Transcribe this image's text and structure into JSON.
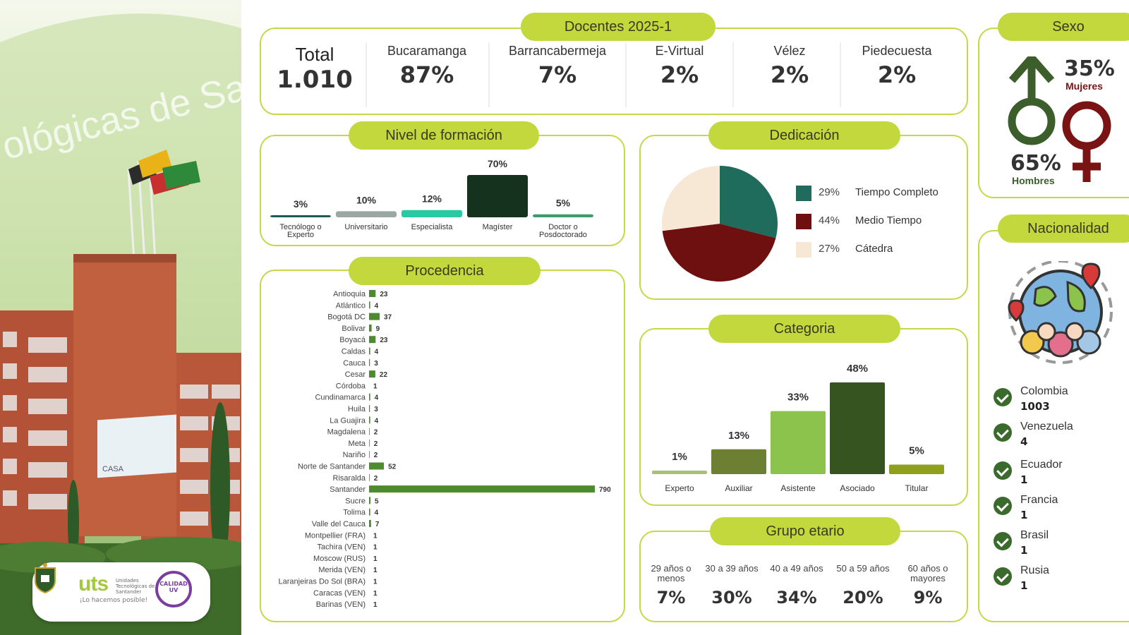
{
  "photo": {
    "wall_text": "ológicas de San",
    "screen_text": "CASA",
    "logo": {
      "brand": "uts",
      "unit": "Unidades Tecnológicas de Santander",
      "slogan": "¡Lo hacemos posible!",
      "seal": "CALIDAD UV"
    }
  },
  "docentes": {
    "title": "Docentes 2025-1",
    "total_label": "Total",
    "total_value": "1.010",
    "sedes": [
      {
        "label": "Bucaramanga",
        "value": "87%"
      },
      {
        "label": "Barrancabermeja",
        "value": "7%"
      },
      {
        "label": "E-Virtual",
        "value": "2%"
      },
      {
        "label": "Vélez",
        "value": "2%"
      },
      {
        "label": "Piedecuesta",
        "value": "2%"
      }
    ]
  },
  "sexo": {
    "title": "Sexo",
    "mujeres_pct": "35%",
    "mujeres_label": "Mujeres",
    "hombres_pct": "65%",
    "hombres_label": "Hombres",
    "colors": {
      "hombres": "#3b5e2b",
      "mujeres": "#7a1414"
    }
  },
  "nacionalidad": {
    "title": "Nacionalidad",
    "items": [
      {
        "name": "Colombia",
        "count": "1003"
      },
      {
        "name": "Venezuela",
        "count": "4"
      },
      {
        "name": "Ecuador",
        "count": "1"
      },
      {
        "name": "Francia",
        "count": "1"
      },
      {
        "name": "Brasil",
        "count": "1"
      },
      {
        "name": "Rusia",
        "count": "1"
      }
    ]
  },
  "grupo_etario": {
    "title": "Grupo etario",
    "groups": [
      {
        "label": "29 años o menos",
        "value": "7%"
      },
      {
        "label": "30 a 39 años",
        "value": "30%"
      },
      {
        "label": "40 a 49 años",
        "value": "34%"
      },
      {
        "label": "50 a 59 años",
        "value": "20%"
      },
      {
        "label": "60 años o mayores",
        "value": "9%"
      }
    ]
  },
  "chart_data": [
    {
      "id": "formacion",
      "type": "bar",
      "title": "Nivel de formación",
      "categories": [
        "Tecnólogo o Experto",
        "Universitario",
        "Especialista",
        "Magíster",
        "Doctor o Posdoctorado"
      ],
      "values": [
        3,
        10,
        12,
        70,
        5
      ],
      "value_labels": [
        "3%",
        "10%",
        "12%",
        "70%",
        "5%"
      ],
      "colors": [
        "#1f5a54",
        "#9aa7a2",
        "#2bc9a3",
        "#15321f",
        "#3d9b6a"
      ],
      "ylim": [
        0,
        70
      ]
    },
    {
      "id": "dedicacion",
      "type": "pie",
      "title": "Dedicación",
      "categories": [
        "Tiempo Completo",
        "Medio Tiempo",
        "Cátedra"
      ],
      "values": [
        29,
        44,
        27
      ],
      "value_labels": [
        "29%",
        "44%",
        "27%"
      ],
      "colors": [
        "#1f6b5c",
        "#6e1010",
        "#f6e8d5"
      ],
      "legend": "right"
    },
    {
      "id": "procedencia",
      "type": "bar",
      "orientation": "horizontal",
      "title": "Procedencia",
      "categories": [
        "Antioquia",
        "Atlántico",
        "Bogotá DC",
        "Bolivar",
        "Boyacá",
        "Caldas",
        "Cauca",
        "Cesar",
        "Córdoba",
        "Cundinamarca",
        "Huila",
        "La Guajira",
        "Magdalena",
        "Meta",
        "Nariño",
        "Norte de Santander",
        "Risaralda",
        "Santander",
        "Sucre",
        "Tolima",
        "Valle del Cauca",
        "Montpellier (FRA)",
        "Tachira (VEN)",
        "Moscow (RUS)",
        "Merida (VEN)",
        "Laranjeiras Do Sol (BRA)",
        "Caracas (VEN)",
        "Barinas (VEN)"
      ],
      "values": [
        23,
        4,
        37,
        9,
        23,
        4,
        3,
        22,
        1,
        4,
        3,
        4,
        2,
        2,
        2,
        52,
        2,
        790,
        5,
        4,
        7,
        1,
        1,
        1,
        1,
        1,
        1,
        1
      ],
      "color": "#4e8a2e"
    },
    {
      "id": "categoria",
      "type": "bar",
      "title": "Categoria",
      "categories": [
        "Experto",
        "Auxiliar",
        "Asistente",
        "Asociado",
        "Titular"
      ],
      "values": [
        1,
        13,
        33,
        48,
        5
      ],
      "value_labels": [
        "1%",
        "13%",
        "33%",
        "48%",
        "5%"
      ],
      "colors": [
        "#a9bf7a",
        "#6c7f32",
        "#8cc34d",
        "#355420",
        "#8fa01c"
      ],
      "ylim": [
        0,
        48
      ]
    }
  ]
}
